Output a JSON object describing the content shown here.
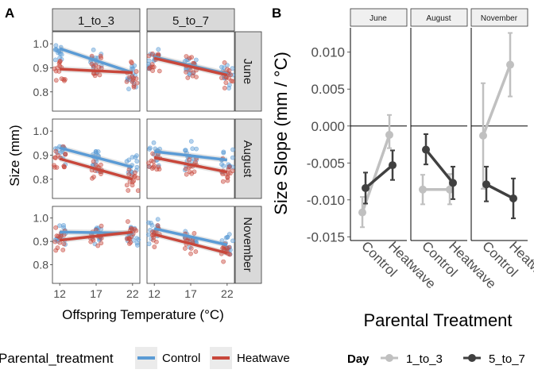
{
  "colors": {
    "control": "#5b9bd5",
    "heatwave": "#c8473b",
    "day_1_to_3": "#c0c0c0",
    "day_5_to_7": "#404040",
    "strip_fill": "#d9d9d9",
    "strip_fill_b": "#f0f0f0"
  },
  "panel_a": {
    "tag": "A",
    "col_strips": [
      "1_to_3",
      "5_to_7"
    ],
    "row_strips": [
      "June",
      "August",
      "November"
    ],
    "xlabel": "Offspring Temperature (°C)",
    "ylabel": "Size (mm)",
    "x_ticks": [
      "12",
      "17",
      "22"
    ],
    "y_ticks": [
      "0.8",
      "0.9",
      "1.0"
    ],
    "legend_title": "Parental_treatment",
    "legend_labels": [
      "Control",
      "Heatwave"
    ]
  },
  "panel_b": {
    "tag": "B",
    "strips": [
      "June",
      "August",
      "November"
    ],
    "ylabel": "Size Slope (mm / °C)",
    "xlabel": "Parental Treatment",
    "x_ticks": [
      "Control",
      "Heatwave"
    ],
    "y_ticks": [
      "0.010",
      "0.005",
      "0.000",
      "-0.005",
      "-0.010",
      "-0.015"
    ],
    "legend_title": "Day",
    "legend_labels": [
      "1_to_3",
      "5_to_7"
    ]
  },
  "chart_data": [
    {
      "type": "scatter",
      "panel": "A",
      "facet_rows": "Month",
      "facet_cols": "Day",
      "xlabel": "Offspring Temperature (°C)",
      "ylabel": "Size (mm)",
      "x_values": [
        12,
        17,
        22
      ],
      "xlim": [
        11,
        23
      ],
      "ylim": [
        0.72,
        1.05
      ],
      "grid": false,
      "legend": "bottom",
      "series_names": [
        "Control",
        "Heatwave"
      ],
      "facets": [
        {
          "row": "June",
          "col": "1_to_3",
          "fit": {
            "Control": [
              0.98,
              0.88
            ],
            "Heatwave": [
              0.895,
              0.88
            ]
          },
          "means": {
            "Control": [
              0.97,
              0.92,
              0.88
            ],
            "Heatwave": [
              0.88,
              0.91,
              0.87
            ]
          }
        },
        {
          "row": "June",
          "col": "5_to_7",
          "fit": {
            "Control": [
              0.945,
              0.875
            ],
            "Heatwave": [
              0.94,
              0.87
            ]
          },
          "means": {
            "Control": [
              0.94,
              0.91,
              0.88
            ],
            "Heatwave": [
              0.93,
              0.9,
              0.87
            ]
          }
        },
        {
          "row": "August",
          "col": "1_to_3",
          "fit": {
            "Control": [
              0.93,
              0.85
            ],
            "Heatwave": [
              0.885,
              0.8
            ]
          },
          "means": {
            "Control": [
              0.92,
              0.89,
              0.85
            ],
            "Heatwave": [
              0.88,
              0.84,
              0.8
            ]
          }
        },
        {
          "row": "August",
          "col": "5_to_7",
          "fit": {
            "Control": [
              0.915,
              0.88
            ],
            "Heatwave": [
              0.89,
              0.83
            ]
          },
          "means": {
            "Control": [
              0.91,
              0.9,
              0.88
            ],
            "Heatwave": [
              0.88,
              0.86,
              0.83
            ]
          }
        },
        {
          "row": "November",
          "col": "1_to_3",
          "fit": {
            "Control": [
              0.94,
              0.935
            ],
            "Heatwave": [
              0.905,
              0.94
            ]
          },
          "means": {
            "Control": [
              0.94,
              0.93,
              0.93
            ],
            "Heatwave": [
              0.9,
              0.92,
              0.94
            ]
          }
        },
        {
          "row": "November",
          "col": "5_to_7",
          "fit": {
            "Control": [
              0.955,
              0.885
            ],
            "Heatwave": [
              0.93,
              0.85
            ]
          },
          "means": {
            "Control": [
              0.95,
              0.92,
              0.89
            ],
            "Heatwave": [
              0.93,
              0.89,
              0.85
            ]
          }
        }
      ]
    },
    {
      "type": "line",
      "panel": "B",
      "facets": [
        "June",
        "August",
        "November"
      ],
      "categories": [
        "Control",
        "Heatwave"
      ],
      "xlabel": "Parental Treatment",
      "ylabel": "Size Slope (mm / °C)",
      "ylim": [
        -0.0155,
        0.0133
      ],
      "hline": 0,
      "legend": "bottom",
      "series": [
        {
          "name": "1_to_3",
          "color": "#c0c0c0",
          "values": {
            "June": [
              -0.0117,
              -0.0012
            ],
            "August": [
              -0.0086,
              -0.0086
            ],
            "November": [
              -0.0013,
              0.0083
            ]
          },
          "err": {
            "June": [
              [
                -0.0137,
                -0.0096
              ],
              [
                -0.003,
                0.0015
              ]
            ],
            "August": [
              [
                -0.0106,
                -0.0066
              ],
              [
                -0.0106,
                -0.0065
              ]
            ],
            "November": [
              [
                -0.0085,
                0.0058
              ],
              [
                0.004,
                0.0126
              ]
            ]
          }
        },
        {
          "name": "5_to_7",
          "color": "#404040",
          "values": {
            "June": [
              -0.0084,
              -0.0053
            ],
            "August": [
              -0.0032,
              -0.0077
            ],
            "November": [
              -0.0079,
              -0.0098
            ]
          },
          "err": {
            "June": [
              [
                -0.0105,
                -0.0063
              ],
              [
                -0.0073,
                -0.0033
              ]
            ],
            "August": [
              [
                -0.0052,
                -0.0011
              ],
              [
                -0.0099,
                -0.0055
              ]
            ],
            "November": [
              [
                -0.0102,
                -0.0055
              ],
              [
                -0.0125,
                -0.0071
              ]
            ]
          }
        }
      ]
    }
  ]
}
